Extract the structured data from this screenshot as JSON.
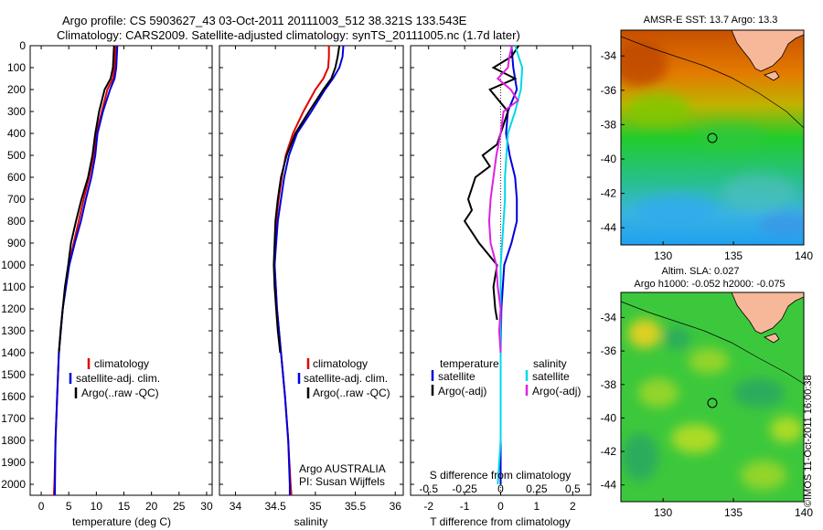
{
  "header": {
    "line1": "Argo profile: CS 5903627_43 03-Oct-2011 20111003_512 38.321S 133.543E",
    "line2": "Climatology: CARS2009. Satellite-adjusted climatology: synTS_20111005.nc (1.7d later)"
  },
  "colors": {
    "climatology": "#e00000",
    "satellite": "#0000dd",
    "argo": "#000000",
    "satellite_s": "#00d8e8",
    "argo_s": "#e020e0"
  },
  "chart_data": [
    {
      "type": "line",
      "id": "temperature",
      "xlabel": "temperature (deg C)",
      "ylabel": "",
      "xlim": [
        -2,
        31
      ],
      "ylim": [
        2050,
        0
      ],
      "xticks": [
        "0",
        "5",
        "10",
        "15",
        "20",
        "25",
        "30"
      ],
      "yticks": [
        "0",
        "100",
        "200",
        "300",
        "400",
        "500",
        "600",
        "700",
        "800",
        "900",
        "1000",
        "1100",
        "1200",
        "1300",
        "1400",
        "1500",
        "1600",
        "1700",
        "1800",
        "1900",
        "2000"
      ],
      "legend": [
        "climatology",
        "satellite-adj. clim.",
        "Argo(..raw -QC)"
      ],
      "series": [
        {
          "name": "climatology",
          "depth": [
            0,
            50,
            100,
            150,
            200,
            300,
            400,
            500,
            600,
            700,
            800,
            900,
            1000,
            1200,
            1400,
            1600,
            1800,
            2000,
            2050
          ],
          "values": [
            13.5,
            13.4,
            13.3,
            13.0,
            12.0,
            11.0,
            10.0,
            9.5,
            8.7,
            7.7,
            6.8,
            5.9,
            5.0,
            3.9,
            3.2,
            2.9,
            2.6,
            2.4,
            2.3
          ]
        },
        {
          "name": "satellite-adj. clim.",
          "depth": [
            0,
            50,
            100,
            150,
            200,
            300,
            400,
            500,
            600,
            700,
            800,
            900,
            1000,
            1200,
            1400,
            1600,
            1800,
            2000,
            2050
          ],
          "values": [
            13.8,
            13.7,
            13.6,
            13.3,
            12.5,
            11.2,
            10.2,
            9.8,
            9.1,
            8.1,
            7.2,
            6.1,
            5.1,
            3.9,
            3.2,
            2.9,
            2.6,
            2.5,
            2.5
          ]
        },
        {
          "name": "Argo(..raw -QC)",
          "depth": [
            0,
            50,
            100,
            150,
            200,
            300,
            400,
            500,
            600,
            700,
            800,
            900,
            1000,
            1100,
            1200,
            1300,
            1400
          ],
          "values": [
            13.2,
            13.1,
            13.0,
            12.6,
            11.5,
            10.5,
            9.8,
            9.3,
            8.5,
            7.3,
            6.3,
            5.4,
            4.9,
            4.3,
            3.9,
            3.5,
            3.2
          ]
        }
      ]
    },
    {
      "type": "line",
      "id": "salinity",
      "xlabel": "salinity",
      "ylabel": "",
      "xlim": [
        33.8,
        36.1
      ],
      "ylim": [
        2050,
        0
      ],
      "xticks": [
        "34",
        "34.5",
        "35",
        "35.5",
        "36"
      ],
      "legend": [
        "climatology",
        "satellite-adj. clim.",
        "Argo(..raw -QC)"
      ],
      "annotation": [
        "Argo AUSTRALIA",
        "PI: Susan Wijffels"
      ],
      "series": [
        {
          "name": "climatology",
          "depth": [
            0,
            50,
            100,
            150,
            200,
            300,
            400,
            500,
            600,
            700,
            800,
            900,
            1000,
            1200,
            1400,
            1600,
            1800,
            2000,
            2050
          ],
          "values": [
            35.17,
            35.17,
            35.16,
            35.1,
            35.0,
            34.85,
            34.72,
            34.63,
            34.58,
            34.54,
            34.51,
            34.5,
            34.49,
            34.52,
            34.57,
            34.62,
            34.66,
            34.69,
            34.7
          ]
        },
        {
          "name": "satellite-adj. clim.",
          "depth": [
            0,
            50,
            100,
            150,
            200,
            300,
            400,
            500,
            600,
            700,
            800,
            900,
            1000,
            1200,
            1400,
            1600,
            1800,
            2000,
            2050
          ],
          "values": [
            35.35,
            35.34,
            35.3,
            35.22,
            35.12,
            34.95,
            34.77,
            34.67,
            34.61,
            34.57,
            34.53,
            34.51,
            34.49,
            34.52,
            34.57,
            34.62,
            34.66,
            34.68,
            34.68
          ]
        },
        {
          "name": "Argo(..raw -QC)",
          "depth": [
            0,
            50,
            100,
            150,
            200,
            300,
            400,
            500,
            600,
            700,
            800,
            900,
            1000,
            1100,
            1200,
            1300,
            1400
          ],
          "values": [
            35.3,
            35.28,
            35.25,
            35.2,
            35.1,
            34.92,
            34.75,
            34.64,
            34.57,
            34.53,
            34.5,
            34.49,
            34.48,
            34.49,
            34.51,
            34.53,
            34.56
          ]
        }
      ]
    },
    {
      "type": "line",
      "id": "difference",
      "xlabel": "T difference from climatology",
      "xlabel2": "S difference from climatology",
      "xlim": [
        -2.5,
        2.5
      ],
      "ylim": [
        2050,
        0
      ],
      "xticks": [
        "-2",
        "-1",
        "0",
        "1",
        "2"
      ],
      "xticks_s": [
        "-0.5",
        "-0.25",
        "0",
        "0.25",
        "0.5"
      ],
      "legend_t_title": "temperature",
      "legend_s_title": "salinity",
      "legend_t": [
        "satellite",
        "Argo(-adj)"
      ],
      "legend_s": [
        "satellite",
        "Argo(-adj)"
      ],
      "series": [
        {
          "name": "satellite",
          "kind": "T",
          "depth": [
            0,
            100,
            200,
            300,
            400,
            500,
            600,
            700,
            800,
            900,
            1000,
            1200,
            1400,
            1600,
            1800,
            2000
          ],
          "values": [
            0.3,
            0.35,
            0.45,
            0.2,
            0.15,
            0.25,
            0.4,
            0.45,
            0.45,
            0.3,
            0.1,
            0.02,
            0.0,
            0.0,
            0.0,
            0.0
          ]
        },
        {
          "name": "Argo(-adj)",
          "kind": "T",
          "depth": [
            0,
            50,
            100,
            150,
            200,
            300,
            400,
            450,
            500,
            550,
            600,
            650,
            700,
            750,
            800,
            850,
            900,
            1000,
            1100,
            1200,
            1250
          ],
          "values": [
            0.5,
            0.3,
            -0.2,
            0.4,
            -0.3,
            0.2,
            0.0,
            -0.1,
            -0.5,
            -0.3,
            -0.7,
            -0.8,
            -0.9,
            -0.8,
            -1.0,
            -0.8,
            -0.6,
            -0.1,
            -0.2,
            -0.15,
            -0.1
          ]
        },
        {
          "name": "satellite",
          "kind": "S",
          "depth": [
            0,
            100,
            200,
            300,
            400,
            500,
            600,
            700,
            800,
            900,
            1000,
            1200,
            1400,
            1600,
            1800,
            2000
          ],
          "values": [
            0.1,
            0.15,
            0.14,
            0.1,
            0.05,
            0.04,
            0.03,
            0.03,
            0.02,
            0.01,
            0.0,
            0.0,
            0.0,
            0.0,
            0.0,
            -0.02
          ]
        },
        {
          "name": "Argo(-adj)",
          "kind": "S",
          "depth": [
            0,
            50,
            100,
            150,
            200,
            250,
            300,
            400,
            500,
            600,
            700,
            800,
            900,
            1000,
            1100,
            1200,
            1300,
            1400
          ],
          "values": [
            0.08,
            0.06,
            0.05,
            -0.02,
            0.07,
            0.12,
            0.02,
            0.0,
            -0.03,
            -0.05,
            -0.07,
            -0.08,
            -0.07,
            -0.03,
            -0.02,
            0.0,
            -0.01,
            0.0
          ]
        }
      ]
    },
    {
      "type": "heatmap",
      "id": "sst_map",
      "title": "AMSR-E SST: 13.7 Argo: 13.3",
      "xlim": [
        127,
        140
      ],
      "ylim": [
        -45,
        -32.5
      ],
      "xticks": [
        "130",
        "135",
        "140"
      ],
      "yticks": [
        "-34",
        "-36",
        "-38",
        "-40",
        "-42",
        "-44"
      ],
      "marker": {
        "lon": 133.5,
        "lat": -38.3
      }
    },
    {
      "type": "heatmap",
      "id": "sla_map",
      "title": "Altim. SLA: 0.027",
      "subtitle": "Argo h1000: -0.052 h2000: -0.075",
      "xlim": [
        127,
        140
      ],
      "ylim": [
        -45,
        -32.5
      ],
      "xticks": [
        "130",
        "135",
        "140"
      ],
      "yticks": [
        "-34",
        "-36",
        "-38",
        "-40",
        "-42",
        "-44"
      ],
      "marker": {
        "lon": 133.5,
        "lat": -38.3
      }
    }
  ],
  "credit": "©IMOS 11-Oct-2011 16:00:38"
}
